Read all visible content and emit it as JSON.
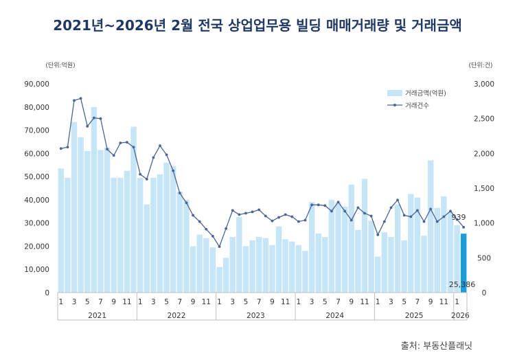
{
  "chart_data": {
    "type": "bar",
    "title": "2021년~2026년 2월 전국 상업업무용 빌딩 매매거래량 및 거래금액",
    "left_unit": "(단위:억원)",
    "right_unit": "(단위:건)",
    "source": "출처: 부동산플래닛",
    "y_left_ticks": [
      "0",
      "10,000",
      "20,000",
      "30,000",
      "40,000",
      "50,000",
      "60,000",
      "70,000",
      "80,000",
      "90,000"
    ],
    "y_right_ticks": [
      "0",
      "500",
      "1,000",
      "1,500",
      "2,000",
      "2,500",
      "3,000"
    ],
    "ylim_left": [
      0,
      90000
    ],
    "ylim_right": [
      0,
      3000
    ],
    "month_ticks": [
      "1",
      "3",
      "5",
      "7",
      "9",
      "11"
    ],
    "year_labels": [
      "2021",
      "2022",
      "2023",
      "2024",
      "2025",
      "2026"
    ],
    "last_amount_label": "25,386",
    "last_count_label": "939",
    "highlight_color": "#1a9bdc",
    "bar_color": "#c6e6f7",
    "line_color": "#4a6494",
    "series": [
      {
        "name": "거래금액(억원)",
        "type": "bar",
        "values": [
          53500,
          49500,
          73500,
          67000,
          61000,
          80000,
          61500,
          62500,
          49500,
          49500,
          52500,
          71500,
          49500,
          38000,
          49500,
          51000,
          56000,
          54500,
          43500,
          40000,
          20000,
          25000,
          23500,
          19500,
          11000,
          15000,
          24000,
          32500,
          20000,
          22500,
          24000,
          23500,
          20500,
          28500,
          23000,
          22000,
          20500,
          18000,
          39000,
          25500,
          24000,
          40000,
          39000,
          37000,
          46500,
          27000,
          49000,
          31000,
          15500,
          26000,
          24000,
          38000,
          22500,
          42500,
          41000,
          24500,
          57000,
          36500,
          41500,
          35000,
          29000,
          25386
        ]
      },
      {
        "name": "거래건수",
        "type": "line",
        "values": [
          2070,
          2090,
          2760,
          2790,
          2390,
          2510,
          2500,
          2060,
          1970,
          2150,
          2160,
          2090,
          1700,
          1630,
          1940,
          2110,
          1980,
          1750,
          1430,
          1290,
          1110,
          1020,
          910,
          810,
          660,
          920,
          1180,
          1120,
          1140,
          1160,
          1190,
          1100,
          1030,
          1080,
          1120,
          1090,
          1020,
          1040,
          1260,
          1260,
          1250,
          1170,
          1300,
          1170,
          1040,
          1220,
          1140,
          1100,
          830,
          1020,
          1220,
          1330,
          1110,
          1090,
          1180,
          1020,
          1200,
          1020,
          1090,
          1170,
          1050,
          939
        ]
      }
    ]
  }
}
